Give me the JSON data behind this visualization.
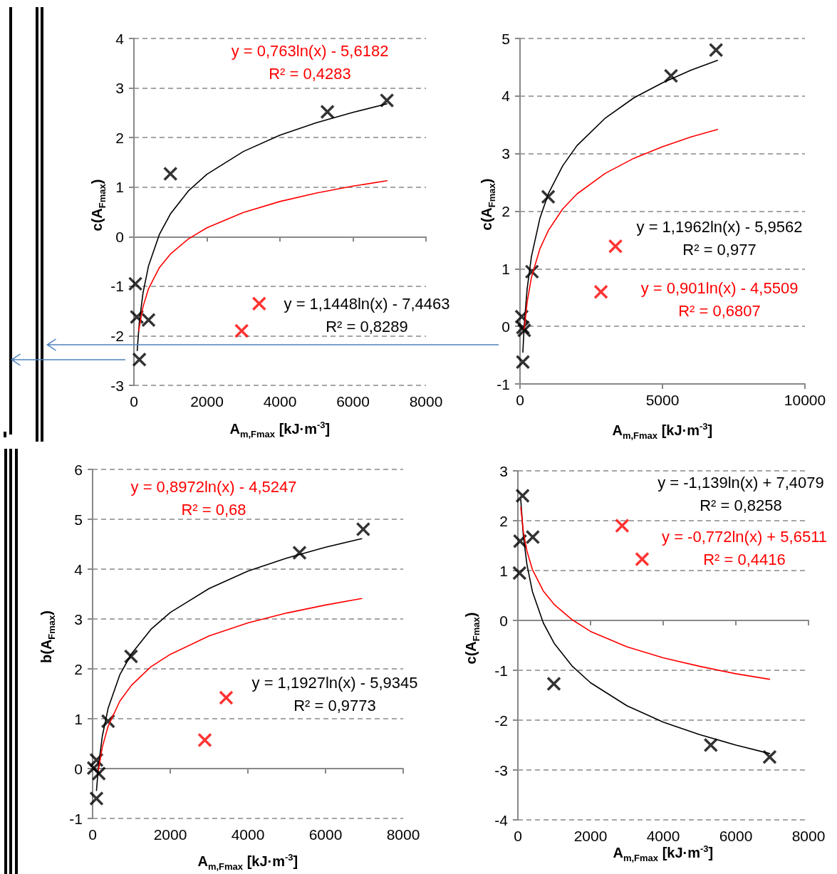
{
  "chart_data": [
    {
      "type": "scatter",
      "ylabel": "c(A$_{Fmax}$)",
      "xlabel": "A$_{m,Fmax}$ [kJ·m$^{-3}$]",
      "xlim": [
        0,
        8000
      ],
      "xticks": [
        0,
        2000,
        4000,
        6000,
        8000
      ],
      "ylim": [
        -3,
        4
      ],
      "yticks": [
        -3,
        -2,
        -1,
        0,
        1,
        2,
        3,
        4
      ],
      "grid": "y",
      "annotations": [
        "y = 1,1448ln(x) - 7,4463\nR² = 0,8289",
        "y = 0,763ln(x) - 5,6182\nR² = 0,4283"
      ],
      "series": [
        {
          "color": "#000000",
          "marker": "cross",
          "x": [
            40,
            80,
            400,
            150,
            1000,
            5300,
            6930
          ],
          "values": [
            -0.95,
            -1.62,
            -1.68,
            -2.48,
            1.27,
            2.52,
            2.75
          ]
        },
        {
          "color": "#ff0000",
          "marker": "cross",
          "x": [
            2950,
            3430
          ],
          "values": [
            -1.9,
            -1.35
          ]
        },
        {
          "type": "line",
          "marker": "none",
          "color": "#000000",
          "x": [
            90,
            150,
            250,
            400,
            700,
            1000,
            1500,
            2000,
            3000,
            4000,
            5000,
            6000,
            6930
          ],
          "values": [
            -2.3,
            -1.71,
            -1.13,
            -0.59,
            0.05,
            0.46,
            0.93,
            1.26,
            1.72,
            2.05,
            2.3,
            2.51,
            2.68
          ]
        },
        {
          "type": "line",
          "marker": "none",
          "color": "#ff0000",
          "x": [
            130,
            250,
            400,
            700,
            1000,
            1500,
            2000,
            3000,
            4000,
            5000,
            6000,
            6930
          ],
          "values": [
            -1.9,
            -1.41,
            -1.05,
            -0.62,
            -0.35,
            -0.04,
            0.18,
            0.49,
            0.71,
            0.88,
            1.02,
            1.13
          ]
        }
      ]
    },
    {
      "type": "scatter",
      "ylabel": "c(A$_{Fmax}$)",
      "xlabel": "A$_{m,Fmax}$ [kJ·m$^{-3}$]",
      "xlim": [
        0,
        10000
      ],
      "xticks": [
        0,
        5000,
        10000
      ],
      "ylim": [
        -1,
        5
      ],
      "yticks": [
        -1,
        0,
        1,
        2,
        3,
        4,
        5
      ],
      "grid": "y",
      "annotations": [
        "y = 1,1962ln(x) - 5,9562\nR² = 0,977",
        "y = 0,901ln(x) - 4,5509\nR² = 0,6807"
      ],
      "series": [
        {
          "color": "#000000",
          "marker": "cross",
          "x": [
            60,
            100,
            150,
            100,
            420,
            990,
            5300,
            6880
          ],
          "values": [
            0.17,
            -0.02,
            -0.07,
            -0.62,
            0.95,
            2.25,
            4.35,
            4.8
          ]
        },
        {
          "color": "#ff0000",
          "marker": "cross",
          "x": [
            2840,
            3350
          ],
          "values": [
            0.6,
            1.39
          ]
        },
        {
          "type": "line",
          "marker": "none",
          "color": "#000000",
          "x": [
            100,
            150,
            250,
            400,
            700,
            1000,
            1500,
            2000,
            3000,
            4000,
            5000,
            6000,
            6930
          ],
          "values": [
            -0.45,
            0.04,
            0.65,
            1.21,
            1.88,
            2.31,
            2.79,
            3.14,
            3.62,
            3.97,
            4.23,
            4.45,
            4.62
          ]
        },
        {
          "type": "line",
          "marker": "none",
          "color": "#ff0000",
          "x": [
            150,
            250,
            400,
            700,
            1000,
            1500,
            2000,
            3000,
            4000,
            5000,
            6000,
            6930
          ],
          "values": [
            -0.04,
            0.42,
            0.85,
            1.35,
            1.67,
            2.04,
            2.3,
            2.66,
            2.92,
            3.12,
            3.29,
            3.42
          ]
        }
      ]
    },
    {
      "type": "scatter",
      "ylabel": "b(A$_{Fmax}$)",
      "xlabel": "A$_{m,Fmax}$ [kJ·m$^{-3}$]",
      "xlim": [
        0,
        8000
      ],
      "xticks": [
        0,
        2000,
        4000,
        6000,
        8000
      ],
      "ylim": [
        -1,
        6
      ],
      "yticks": [
        -1,
        0,
        1,
        2,
        3,
        4,
        5,
        6
      ],
      "grid": "y",
      "annotations": [
        "y = 1,1927ln(x) - 5,9345\nR² = 0,9773",
        "y = 0,8972ln(x) - 4,5247\nR² = 0,68"
      ],
      "series": [
        {
          "color": "#000000",
          "marker": "cross",
          "x": [
            100,
            30,
            160,
            100,
            400,
            990,
            5330,
            6970
          ],
          "values": [
            0.17,
            0.01,
            -0.1,
            -0.6,
            0.95,
            2.25,
            4.33,
            4.8
          ]
        },
        {
          "color": "#ff0000",
          "marker": "cross",
          "x": [
            2890,
            3440
          ],
          "values": [
            0.57,
            1.42
          ]
        },
        {
          "type": "line",
          "marker": "none",
          "color": "#000000",
          "x": [
            100,
            150,
            250,
            400,
            700,
            1000,
            1500,
            2000,
            3000,
            4000,
            5000,
            6000,
            6930
          ],
          "values": [
            -0.44,
            0.04,
            0.65,
            1.21,
            1.88,
            2.3,
            2.79,
            3.13,
            3.61,
            3.96,
            4.22,
            4.44,
            4.61
          ]
        },
        {
          "type": "line",
          "marker": "none",
          "color": "#ff0000",
          "x": [
            150,
            250,
            400,
            700,
            1000,
            1500,
            2000,
            3000,
            4000,
            5000,
            6000,
            6930
          ],
          "values": [
            -0.03,
            0.43,
            0.85,
            1.35,
            1.67,
            2.04,
            2.29,
            2.66,
            2.92,
            3.12,
            3.28,
            3.41
          ]
        }
      ]
    },
    {
      "type": "scatter",
      "ylabel": "c(A$_{Fmax}$)",
      "xlabel": "A$_{m,Fmax}$ [kJ·m$^{-3}$]",
      "xlim": [
        0,
        8000
      ],
      "xticks": [
        0,
        2000,
        4000,
        6000,
        8000
      ],
      "ylim": [
        -4,
        3
      ],
      "yticks": [
        -4,
        -3,
        -2,
        -1,
        0,
        1,
        2,
        3
      ],
      "grid": "y",
      "annotations": [
        "y = -1,139ln(x) + 7,4079\nR² = 0,8258",
        "y = -0,772ln(x) + 5,6511\nR² = 0,4416"
      ],
      "series": [
        {
          "color": "#000000",
          "marker": "cross",
          "x": [
            130,
            60,
            410,
            45,
            990,
            5310,
            6930
          ],
          "values": [
            2.5,
            1.59,
            1.67,
            0.95,
            -1.27,
            -2.5,
            -2.74
          ]
        },
        {
          "color": "#ff0000",
          "marker": "cross",
          "x": [
            2870,
            3420
          ],
          "values": [
            1.9,
            1.23
          ]
        },
        {
          "type": "line",
          "marker": "none",
          "color": "#000000",
          "x": [
            80,
            150,
            250,
            400,
            700,
            1000,
            1500,
            2000,
            3000,
            4000,
            5000,
            6000,
            6930
          ],
          "values": [
            2.42,
            1.7,
            1.12,
            0.58,
            -0.05,
            -0.46,
            -0.92,
            -1.25,
            -1.71,
            -2.04,
            -2.29,
            -2.5,
            -2.67
          ]
        },
        {
          "type": "line",
          "marker": "none",
          "color": "#ff0000",
          "x": [
            80,
            150,
            250,
            400,
            700,
            1000,
            1500,
            2000,
            3000,
            4000,
            5000,
            6000,
            6930
          ],
          "values": [
            2.27,
            1.78,
            1.39,
            1.02,
            0.59,
            0.32,
            0.01,
            -0.22,
            -0.53,
            -0.75,
            -0.92,
            -1.07,
            -1.18
          ]
        }
      ]
    }
  ]
}
